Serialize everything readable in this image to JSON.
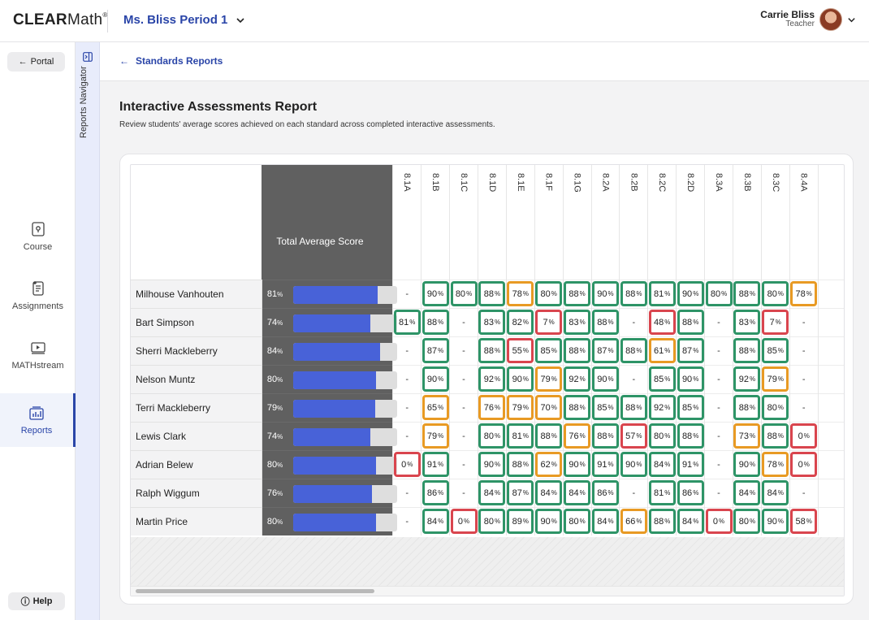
{
  "header": {
    "logo_bold": "CLEAR",
    "logo_light": "Math",
    "logo_mark": "®",
    "class_name": "Ms. Bliss Period 1",
    "user_name": "Carrie Bliss",
    "user_role": "Teacher"
  },
  "leftnav": {
    "portal_label": "Portal",
    "items": [
      {
        "label": "Course",
        "icon": "course-icon"
      },
      {
        "label": "Assignments",
        "icon": "assignments-icon"
      },
      {
        "label": "MATHstream",
        "icon": "mathstream-icon"
      },
      {
        "label": "Reports",
        "icon": "reports-icon",
        "active": true
      }
    ],
    "help_label": "Help"
  },
  "navigator": {
    "label": "Reports Navigator"
  },
  "breadcrumb": {
    "label": "Standards Reports"
  },
  "page": {
    "title": "Interactive Assessments Report",
    "subtitle": "Review students' average scores achieved on each standard across completed interactive assessments."
  },
  "colors": {
    "green": "#2e9467",
    "orange": "#e89a24",
    "red": "#d9454e",
    "bar_fill": "#4862d8",
    "accent": "#2a45a8"
  },
  "report": {
    "total_header": "Total Average Score",
    "standards": [
      "8.1A",
      "8.1B",
      "8.1C",
      "8.1D",
      "8.1E",
      "8.1F",
      "8.1G",
      "8.2A",
      "8.2B",
      "8.2C",
      "8.2D",
      "8.3A",
      "8.3B",
      "8.3C",
      "8.4A"
    ],
    "students": [
      {
        "name": "Milhouse Vanhouten",
        "total": 81,
        "scores": [
          null,
          90,
          80,
          88,
          78,
          80,
          88,
          90,
          88,
          81,
          90,
          80,
          88,
          80,
          78
        ]
      },
      {
        "name": "Bart Simpson",
        "total": 74,
        "scores": [
          81,
          88,
          null,
          83,
          82,
          7,
          83,
          88,
          null,
          48,
          88,
          null,
          83,
          7,
          null
        ]
      },
      {
        "name": "Sherri Mackleberry",
        "total": 84,
        "scores": [
          null,
          87,
          null,
          88,
          55,
          85,
          88,
          87,
          88,
          61,
          87,
          null,
          88,
          85,
          null
        ]
      },
      {
        "name": "Nelson Muntz",
        "total": 80,
        "scores": [
          null,
          90,
          null,
          92,
          90,
          79,
          92,
          90,
          null,
          85,
          90,
          null,
          92,
          79,
          null
        ]
      },
      {
        "name": "Terri Mackleberry",
        "total": 79,
        "scores": [
          null,
          65,
          null,
          76,
          79,
          70,
          88,
          85,
          88,
          92,
          85,
          null,
          88,
          80,
          null
        ]
      },
      {
        "name": "Lewis Clark",
        "total": 74,
        "scores": [
          null,
          79,
          null,
          80,
          81,
          88,
          76,
          88,
          57,
          80,
          88,
          null,
          73,
          88,
          0
        ]
      },
      {
        "name": "Adrian Belew",
        "total": 80,
        "scores": [
          0,
          91,
          null,
          90,
          88,
          62,
          90,
          91,
          90,
          84,
          91,
          null,
          90,
          78,
          0
        ]
      },
      {
        "name": "Ralph Wiggum",
        "total": 76,
        "scores": [
          null,
          86,
          null,
          84,
          87,
          84,
          84,
          86,
          null,
          81,
          86,
          null,
          84,
          84,
          null
        ]
      },
      {
        "name": "Martin Price",
        "total": 80,
        "scores": [
          null,
          84,
          0,
          80,
          89,
          90,
          80,
          84,
          66,
          88,
          84,
          0,
          80,
          90,
          58
        ]
      }
    ],
    "empty_score": "-",
    "percent_sign": "%"
  }
}
